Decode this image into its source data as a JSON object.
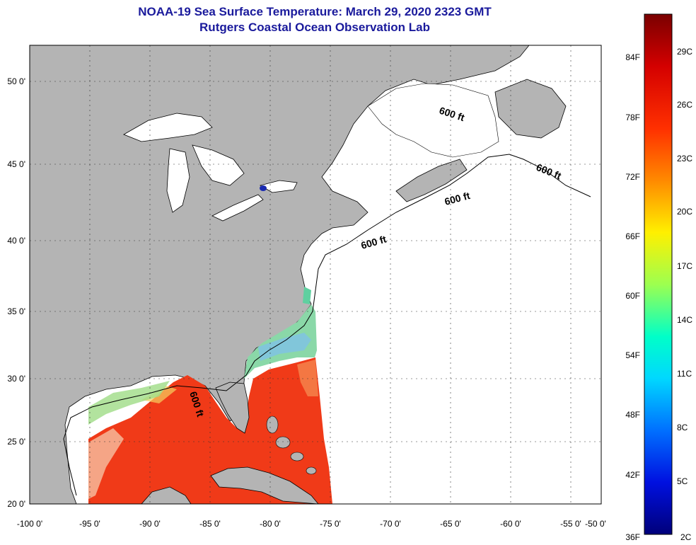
{
  "title": {
    "line1": "NOAA-19 Sea Surface Temperature:  March 29, 2020 2323 GMT",
    "line2": "Rutgers Coastal Ocean Observation Lab"
  },
  "map": {
    "lon_ticks": [
      "-100 0'",
      "-95 0'",
      "-90 0'",
      "-85 0'",
      "-80 0'",
      "-75 0'",
      "-70 0'",
      "-65 0'",
      "-60 0'",
      "-55 0'",
      "-50 0'"
    ],
    "lat_ticks": [
      "20 0'",
      "25 0'",
      "30 0'",
      "35 0'",
      "40 0'",
      "45 0'",
      "50 0'"
    ],
    "contour_labels": [
      "600 ft",
      "600 ft",
      "600 ft",
      "600 ft",
      "600 ft"
    ],
    "colors": {
      "land": "#b4b4b4",
      "no_data": "#ffffff",
      "gulf_warm": "#f03a18",
      "shelf_cool": "#8ad8a8"
    }
  },
  "colorbar": {
    "fahrenheit": [
      "84F",
      "78F",
      "72F",
      "66F",
      "60F",
      "54F",
      "48F",
      "42F",
      "36F"
    ],
    "celsius": [
      "29C",
      "26C",
      "23C",
      "20C",
      "17C",
      "14C",
      "11C",
      "8C",
      "5C",
      "2C"
    ]
  }
}
